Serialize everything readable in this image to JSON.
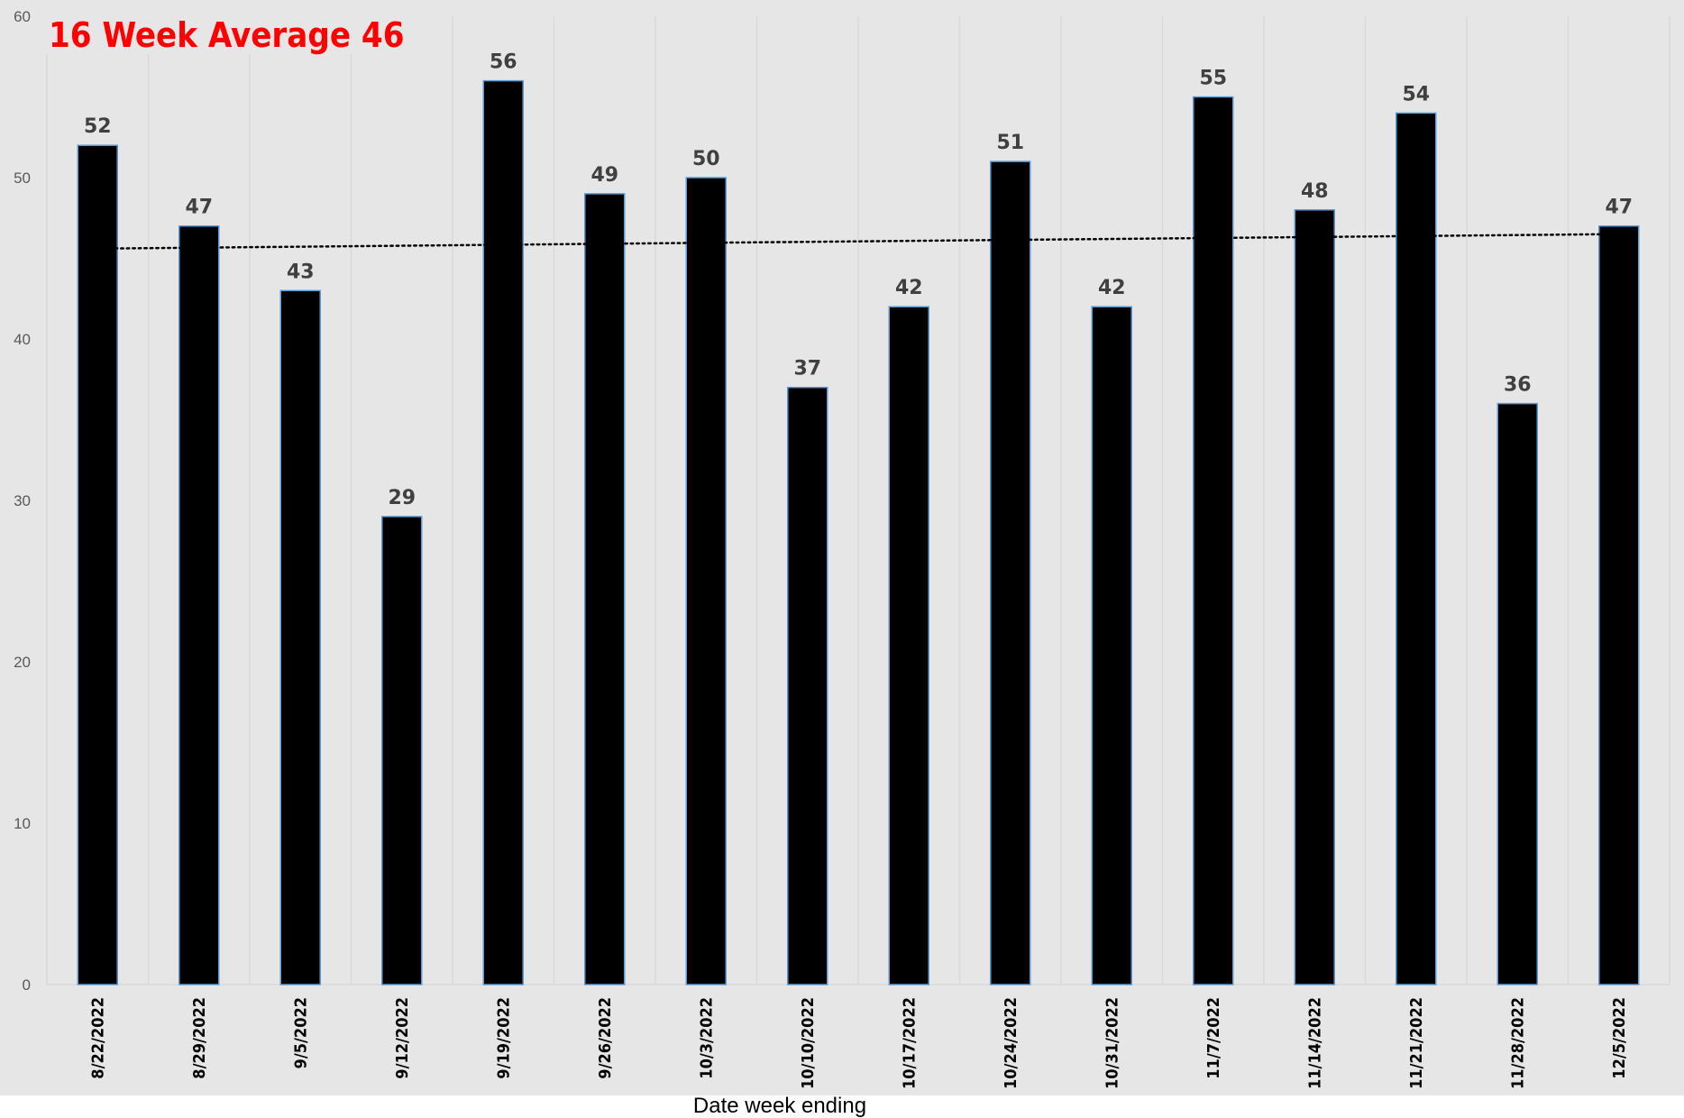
{
  "chart_data": {
    "type": "bar",
    "title": "16 Week Average 46",
    "xlabel": "Date week ending",
    "ylabel": "",
    "ylim": [
      0,
      60
    ],
    "yticks": [
      0,
      10,
      20,
      30,
      40,
      50,
      60
    ],
    "categories": [
      "8/22/2022",
      "8/29/2022",
      "9/5/2022",
      "9/12/2022",
      "9/19/2022",
      "9/26/2022",
      "10/3/2022",
      "10/10/2022",
      "10/17/2022",
      "10/24/2022",
      "10/31/2022",
      "11/7/2022",
      "11/14/2022",
      "11/21/2022",
      "11/28/2022",
      "12/5/2022"
    ],
    "values": [
      52,
      47,
      43,
      29,
      56,
      49,
      50,
      37,
      42,
      51,
      42,
      55,
      48,
      54,
      36,
      47
    ],
    "trendline": {
      "type": "linear",
      "style": "dotted",
      "start": 45.6,
      "end": 46.5
    },
    "grid": "vertical",
    "legend": "none",
    "colors": {
      "bar": "#000000",
      "bar_edge": "#5b9bd5",
      "plot_background": "#e7e6e6",
      "title": "#ff0000",
      "data_label": "#404040",
      "tick": "#595959"
    }
  }
}
